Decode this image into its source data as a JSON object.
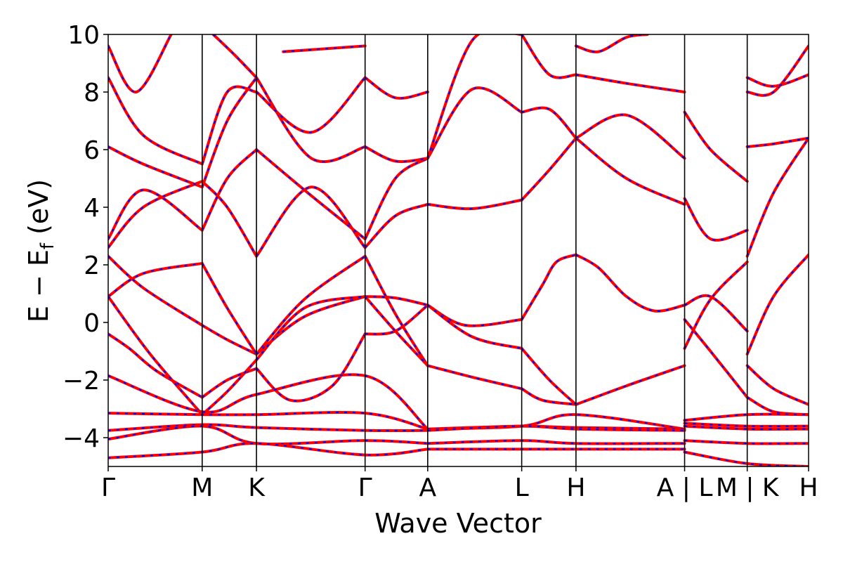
{
  "chart_data": {
    "type": "line",
    "title": "",
    "xlabel": "Wave Vector",
    "ylabel": "E − E",
    "ylabel_sub": "f",
    "ylabel_unit": " (eV)",
    "ylim": [
      -5,
      10
    ],
    "yticks": [
      -4,
      -2,
      0,
      2,
      4,
      6,
      8,
      10
    ],
    "ytick_labels": [
      "−4",
      "−2",
      "0",
      "2",
      "4",
      "6",
      "8",
      "10"
    ],
    "xlim": [
      0,
      1
    ],
    "kpath_ticks": [
      {
        "label": "Γ",
        "x": 0.0
      },
      {
        "label": "M",
        "x": 0.1342
      },
      {
        "label": "K",
        "x": 0.2117
      },
      {
        "label": "Γ",
        "x": 0.3668
      },
      {
        "label": "A",
        "x": 0.4562
      },
      {
        "label": "L",
        "x": 0.5904
      },
      {
        "label": "H",
        "x": 0.6679
      },
      {
        "label": "A | L",
        "x": 0.823
      },
      {
        "label": "M | K",
        "x": 0.9124
      },
      {
        "label": "H",
        "x": 1.0
      }
    ],
    "grid": false,
    "colors": {
      "band_solid": "#ff0000",
      "band_dashed": "#0000ff",
      "vline": "#000000"
    },
    "series": [
      {
        "segments": [
          {
            "x": [
              0,
              0.03,
              0.07,
              0.1342
            ],
            "y": [
              -0.4,
              -0.9,
              -1.7,
              -2.6
            ]
          },
          {
            "x": [
              0.1342,
              0.17,
              0.2117
            ],
            "y": [
              -2.6,
              -2.0,
              -1.6
            ]
          },
          {
            "x": [
              0.2117,
              0.26,
              0.32,
              0.3668
            ],
            "y": [
              -1.6,
              -2.7,
              -2.2,
              -0.4
            ]
          },
          {
            "x": [
              0.3668,
              0.41,
              0.4562
            ],
            "y": [
              -0.4,
              -0.3,
              0.6
            ]
          },
          {
            "x": [
              0.4562,
              0.51,
              0.5904
            ],
            "y": [
              0.6,
              -0.1,
              0.1
            ]
          },
          {
            "x": [
              0.5904,
              0.62,
              0.64,
              0.6679
            ],
            "y": [
              0.1,
              1.3,
              2.1,
              2.35
            ]
          },
          {
            "x": [
              0.6679,
              0.7,
              0.74,
              0.78,
              0.823
            ],
            "y": [
              2.35,
              1.9,
              0.9,
              0.4,
              0.6
            ]
          },
          {
            "x": [
              0.823,
              0.86,
              0.9124
            ],
            "y": [
              -0.9,
              0.8,
              2.1
            ]
          },
          {
            "x": [
              0.9124,
              0.95,
              1.0
            ],
            "y": [
              -1.1,
              0.9,
              2.35
            ]
          }
        ]
      },
      {
        "segments": [
          {
            "x": [
              0,
              0.05,
              0.1342
            ],
            "y": [
              0.9,
              1.7,
              2.05
            ]
          },
          {
            "x": [
              0.1342,
              0.17,
              0.2117
            ],
            "y": [
              2.05,
              0.5,
              -1.1
            ]
          },
          {
            "x": [
              0.2117,
              0.28,
              0.3668
            ],
            "y": [
              -1.1,
              0.8,
              2.3
            ]
          },
          {
            "x": [
              0.3668,
              0.41,
              0.4562
            ],
            "y": [
              2.3,
              0.3,
              -1.5
            ]
          },
          {
            "x": [
              0.4562,
              0.52,
              0.5904
            ],
            "y": [
              -1.5,
              -1.9,
              -2.3
            ]
          },
          {
            "x": [
              0.5904,
              0.62,
              0.6679
            ],
            "y": [
              -2.3,
              -2.7,
              -2.85
            ]
          },
          {
            "x": [
              0.6679,
              0.74,
              0.823
            ],
            "y": [
              -2.85,
              -2.2,
              -1.5
            ]
          },
          {
            "x": [
              0.823,
              0.86,
              0.9124
            ],
            "y": [
              0.1,
              -1.0,
              -2.6
            ]
          },
          {
            "x": [
              0.9124,
              0.95,
              1.0
            ],
            "y": [
              -1.5,
              -2.3,
              -2.85
            ]
          }
        ]
      },
      {
        "segments": [
          {
            "x": [
              0,
              0.05,
              0.1342
            ],
            "y": [
              2.3,
              1.2,
              -0.1
            ]
          },
          {
            "x": [
              0.1342,
              0.17,
              0.2117
            ],
            "y": [
              -0.1,
              -0.6,
              -1.1
            ]
          },
          {
            "x": [
              0.2117,
              0.28,
              0.3668
            ],
            "y": [
              -1.1,
              0.2,
              0.9
            ]
          },
          {
            "x": [
              0.3668,
              0.41,
              0.4562
            ],
            "y": [
              0.9,
              0.85,
              0.6
            ]
          },
          {
            "x": [
              0.4562,
              0.52,
              0.5904
            ],
            "y": [
              0.6,
              -0.5,
              -0.9
            ]
          },
          {
            "x": [
              0.5904,
              0.63,
              0.6679
            ],
            "y": [
              -0.9,
              -2.0,
              -2.85
            ]
          },
          {
            "x": [
              0.9124,
              0.95,
              1.0
            ],
            "y": [
              -2.6,
              -3.1,
              -3.2
            ]
          }
        ]
      },
      {
        "segments": [
          {
            "x": [
              0,
              0.06,
              0.1342
            ],
            "y": [
              0.9,
              -1.1,
              -3.2
            ]
          },
          {
            "x": [
              0.1342,
              0.17,
              0.2117
            ],
            "y": [
              -3.2,
              -2.4,
              -1.3
            ]
          },
          {
            "x": [
              0.2117,
              0.28,
              0.3668
            ],
            "y": [
              -1.3,
              0.5,
              0.9
            ]
          },
          {
            "x": [
              0.3668,
              0.41,
              0.4562
            ],
            "y": [
              0.9,
              -0.3,
              -1.5
            ]
          },
          {
            "x": [
              0.823,
              0.86,
              0.9124
            ],
            "y": [
              0.6,
              0.9,
              -0.3
            ]
          }
        ]
      },
      {
        "segments": [
          {
            "x": [
              0,
              0.05,
              0.1342
            ],
            "y": [
              2.6,
              4.0,
              4.9
            ]
          },
          {
            "x": [
              0.1342,
              0.17,
              0.2117
            ],
            "y": [
              4.9,
              4.0,
              2.3
            ]
          },
          {
            "x": [
              0.2117,
              0.29,
              0.3668
            ],
            "y": [
              2.3,
              4.7,
              2.6
            ]
          },
          {
            "x": [
              0.3668,
              0.41,
              0.4562
            ],
            "y": [
              2.6,
              3.7,
              4.1
            ]
          },
          {
            "x": [
              0.4562,
              0.52,
              0.5904
            ],
            "y": [
              4.1,
              3.95,
              4.25
            ]
          },
          {
            "x": [
              0.5904,
              0.63,
              0.6679
            ],
            "y": [
              4.25,
              5.3,
              6.4
            ]
          },
          {
            "x": [
              0.6679,
              0.74,
              0.823
            ],
            "y": [
              6.4,
              5.0,
              4.1
            ]
          },
          {
            "x": [
              0.823,
              0.86,
              0.9124
            ],
            "y": [
              4.3,
              2.9,
              3.2
            ]
          },
          {
            "x": [
              0.9124,
              0.95,
              1.0
            ],
            "y": [
              2.3,
              4.5,
              6.4
            ]
          }
        ]
      },
      {
        "segments": [
          {
            "x": [
              0,
              0.05,
              0.1342
            ],
            "y": [
              2.9,
              4.6,
              3.2
            ]
          },
          {
            "x": [
              0.1342,
              0.17,
              0.2117
            ],
            "y": [
              3.2,
              5.0,
              6.0
            ]
          },
          {
            "x": [
              0.2117,
              0.29,
              0.3668
            ],
            "y": [
              6.0,
              4.4,
              2.9
            ]
          },
          {
            "x": [
              0.3668,
              0.41,
              0.4562
            ],
            "y": [
              2.9,
              5.0,
              5.7
            ]
          },
          {
            "x": [
              0.4562,
              0.52,
              0.5904
            ],
            "y": [
              5.7,
              8.1,
              7.3
            ]
          },
          {
            "x": [
              0.5904,
              0.63,
              0.6679
            ],
            "y": [
              7.3,
              7.4,
              6.4
            ]
          },
          {
            "x": [
              0.6679,
              0.74,
              0.823
            ],
            "y": [
              6.4,
              7.2,
              5.7
            ]
          },
          {
            "x": [
              0.823,
              0.86,
              0.9124
            ],
            "y": [
              7.3,
              6.0,
              4.9
            ]
          },
          {
            "x": [
              0.9124,
              0.95,
              1.0
            ],
            "y": [
              6.1,
              6.2,
              6.4
            ]
          }
        ]
      },
      {
        "segments": [
          {
            "x": [
              0,
              0.05,
              0.1342
            ],
            "y": [
              6.1,
              5.5,
              4.7
            ]
          },
          {
            "x": [
              0.1342,
              0.17,
              0.2117
            ],
            "y": [
              4.7,
              7.0,
              8.5
            ]
          },
          {
            "x": [
              0.2117,
              0.29,
              0.3668
            ],
            "y": [
              8.5,
              5.7,
              6.1
            ]
          },
          {
            "x": [
              0.3668,
              0.41,
              0.4562
            ],
            "y": [
              6.1,
              5.6,
              5.7
            ]
          },
          {
            "x": [
              0.4562,
              0.52,
              0.5904
            ],
            "y": [
              5.7,
              9.8,
              10.0
            ]
          },
          {
            "x": [
              0.5904,
              0.63,
              0.6679
            ],
            "y": [
              10.0,
              8.6,
              8.6
            ]
          },
          {
            "x": [
              0.6679,
              0.74,
              0.823
            ],
            "y": [
              8.6,
              8.3,
              8.0
            ]
          },
          {
            "x": [
              0.9124,
              0.95,
              1.0
            ],
            "y": [
              8.0,
              8.0,
              9.6
            ]
          }
        ]
      },
      {
        "segments": [
          {
            "x": [
              0,
              0.05,
              0.1342
            ],
            "y": [
              8.5,
              6.5,
              5.5
            ]
          },
          {
            "x": [
              0.1342,
              0.17,
              0.2117
            ],
            "y": [
              5.5,
              8.0,
              8.0
            ]
          },
          {
            "x": [
              0.2117,
              0.29,
              0.3668
            ],
            "y": [
              8.0,
              6.6,
              8.5
            ]
          },
          {
            "x": [
              0.3668,
              0.41,
              0.4562
            ],
            "y": [
              8.5,
              7.8,
              8.0
            ]
          },
          {
            "x": [
              0.9124,
              0.95,
              1.0
            ],
            "y": [
              8.5,
              8.2,
              8.6
            ]
          }
        ]
      },
      {
        "segments": [
          {
            "x": [
              0,
              0.04,
              0.09
            ],
            "y": [
              9.6,
              8.0,
              10.0
            ]
          },
          {
            "x": [
              0.15,
              0.18,
              0.2117
            ],
            "y": [
              10.0,
              9.3,
              8.5
            ]
          },
          {
            "x": [
              0.25,
              0.3668
            ],
            "y": [
              9.4,
              9.6
            ]
          },
          {
            "x": [
              0.6679,
              0.7,
              0.74,
              0.77
            ],
            "y": [
              9.6,
              9.4,
              9.9,
              10.0
            ]
          }
        ]
      },
      {
        "segments": [
          {
            "x": [
              0,
              0.1342,
              0.2117,
              0.3668,
              0.4562
            ],
            "y": [
              -1.85,
              -3.1,
              -2.5,
              -1.85,
              -3.7
            ]
          },
          {
            "x": [
              0.4562,
              0.5904,
              0.6679,
              0.823
            ],
            "y": [
              -3.7,
              -3.6,
              -3.2,
              -3.7
            ]
          },
          {
            "x": [
              0.823,
              0.9124,
              1.0
            ],
            "y": [
              -3.4,
              -3.2,
              -3.2
            ]
          }
        ]
      },
      {
        "segments": [
          {
            "x": [
              0,
              0.1342,
              0.2117,
              0.3668,
              0.4562
            ],
            "y": [
              -3.15,
              -3.2,
              -3.2,
              -3.15,
              -3.7
            ]
          },
          {
            "x": [
              0.4562,
              0.5904,
              0.6679,
              0.823
            ],
            "y": [
              -3.7,
              -3.6,
              -3.65,
              -3.7
            ]
          },
          {
            "x": [
              0.823,
              0.9124,
              1.0
            ],
            "y": [
              -3.5,
              -3.6,
              -3.6
            ]
          }
        ]
      },
      {
        "segments": [
          {
            "x": [
              0,
              0.1342,
              0.2117,
              0.3668,
              0.4562
            ],
            "y": [
              -3.75,
              -3.55,
              -3.65,
              -3.75,
              -3.75
            ]
          },
          {
            "x": [
              0.4562,
              0.5904,
              0.6679,
              0.823
            ],
            "y": [
              -3.75,
              -3.6,
              -3.7,
              -3.75
            ]
          },
          {
            "x": [
              0.823,
              0.9124,
              1.0
            ],
            "y": [
              -3.6,
              -3.7,
              -3.7
            ]
          }
        ]
      },
      {
        "segments": [
          {
            "x": [
              0,
              0.1342,
              0.2117,
              0.3668,
              0.4562
            ],
            "y": [
              -4.05,
              -3.6,
              -4.2,
              -4.1,
              -4.2
            ]
          },
          {
            "x": [
              0.4562,
              0.5904,
              0.6679,
              0.823
            ],
            "y": [
              -4.2,
              -4.1,
              -4.2,
              -4.2
            ]
          },
          {
            "x": [
              0.823,
              0.9124,
              1.0
            ],
            "y": [
              -4.1,
              -4.2,
              -4.2
            ]
          }
        ]
      },
      {
        "segments": [
          {
            "x": [
              0,
              0.1342,
              0.2117,
              0.3668,
              0.4562
            ],
            "y": [
              -4.7,
              -4.5,
              -4.2,
              -4.6,
              -4.4
            ]
          },
          {
            "x": [
              0.4562,
              0.5904,
              0.6679,
              0.823
            ],
            "y": [
              -4.4,
              -4.4,
              -4.4,
              -4.4
            ]
          },
          {
            "x": [
              0.823,
              0.9124,
              1.0
            ],
            "y": [
              -4.5,
              -4.9,
              -5.0
            ]
          }
        ]
      }
    ]
  }
}
